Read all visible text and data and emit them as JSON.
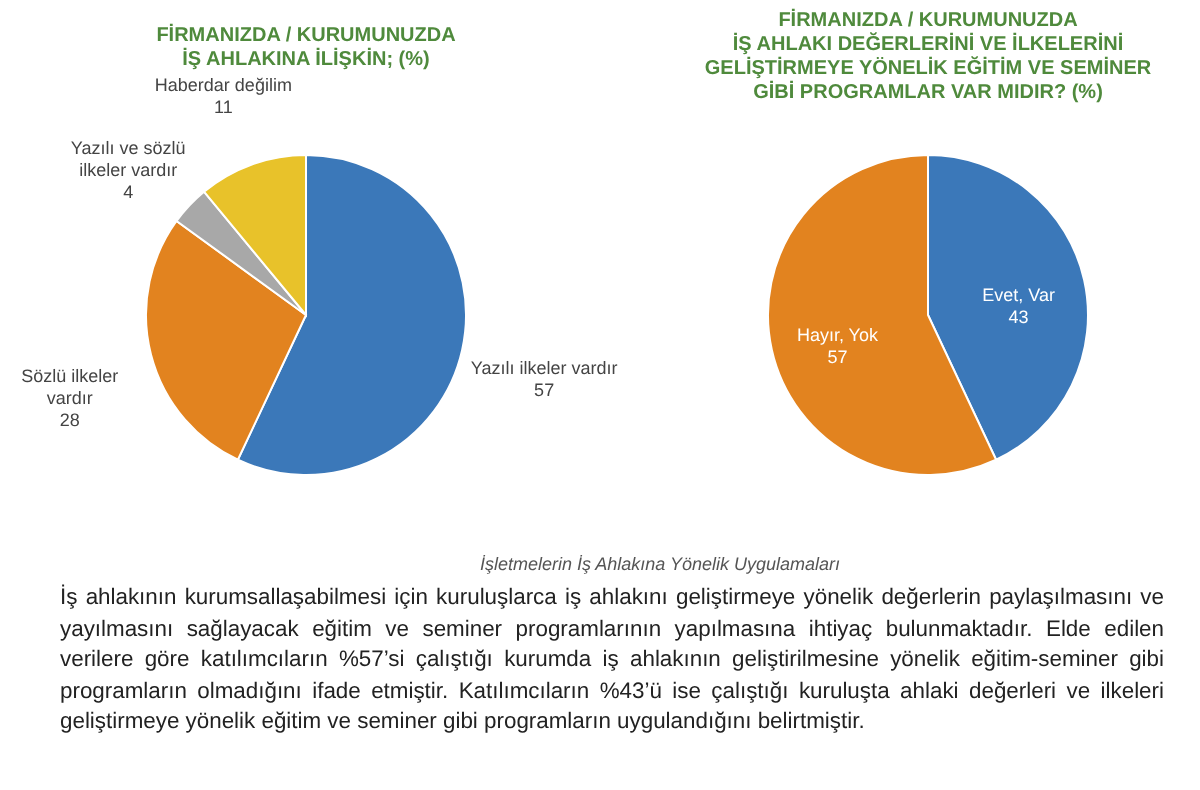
{
  "chart_data": [
    {
      "type": "pie",
      "title": "FİRMANIZDA / KURUMUNUZDA\nİŞ AHLAKINA İLİŞKİN; (%)",
      "categories": [
        "Yazılı ilkeler vardır",
        "Sözlü ilkeler\nvardır",
        "Yazılı ve sözlü\nilkeler vardır",
        "Haberdar değilim"
      ],
      "values": [
        57,
        28,
        4,
        11
      ],
      "colors": [
        "#3b78b9",
        "#e2831f",
        "#a8a8a8",
        "#e8c22a"
      ],
      "data_labels": true,
      "legend": false
    },
    {
      "type": "pie",
      "title": "FİRMANIZDA / KURUMUNUZDA\nİŞ AHLAKI DEĞERLERİNİ VE İLKELERİNİ\nGELİŞTİRMEYE YÖNELİK EĞİTİM VE SEMİNER\nGİBİ PROGRAMLAR VAR MIDIR? (%)",
      "categories": [
        "Evet, Var",
        "Hayır, Yok"
      ],
      "values": [
        43,
        57
      ],
      "colors": [
        "#3b78b9",
        "#e2831f"
      ],
      "data_labels": true,
      "legend": false,
      "annotations": [
        "İşletmelerin İş Ahlakına Yönelik Uygulamaları",
        "İş ahlakının kurumsallaşabilmesi için kuruluşlarca iş ahlakını geliştirmeye yönelik değerlerin paylaşılmasını ve yayılmasını sağlayacak eğitim ve seminer programlarının yapılmasına ihtiyaç bulunmaktadır. Elde edilen verilere göre katılımcıların %57’si çalıştığı kurumda iş ahlakının geliştirilmesine yönelik eğitim-seminer gibi programların olmadığını ifade etmiştir. Katılımcıların %43’ü ise çalıştığı kuruluşta ahlaki değerleri ve ilkeleri geliştirmeye yönelik eğitim ve seminer gibi programların uygulandığını belirtmiştir."
      ]
    }
  ]
}
